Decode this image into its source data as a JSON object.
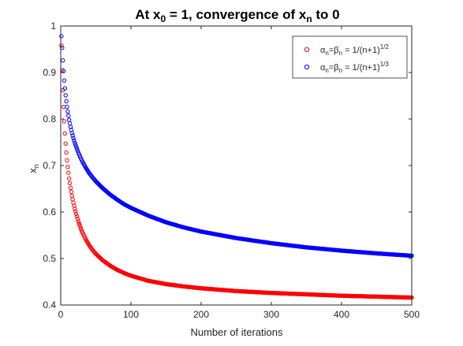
{
  "chart_data": {
    "type": "scatter",
    "title": {
      "a": "At x",
      "a_sub": "0",
      "b": " = 1, convergence of x",
      "b_sub": "n",
      "c": " to 0"
    },
    "xlabel": "Number of iterations",
    "ylabel": {
      "base": "x",
      "sub": "n"
    },
    "xlim": [
      0,
      500
    ],
    "ylim": [
      0.4,
      1.0
    ],
    "xticks": [
      0,
      100,
      200,
      300,
      400,
      500
    ],
    "xtick_labels": [
      "0",
      "100",
      "200",
      "300",
      "400",
      "500"
    ],
    "yticks": [
      0.4,
      0.5,
      0.6,
      0.7,
      0.8,
      0.9,
      1.0
    ],
    "ytick_labels": [
      "0.4",
      "0.5",
      "0.6",
      "0.7",
      "0.8",
      "0.9",
      "1"
    ],
    "grid": false,
    "legend_position": "top-right",
    "marker": "open-circle",
    "series": [
      {
        "name": "αn=βn = 1/(n+1)^(1/2)",
        "color": "#ff0000",
        "legend": {
          "a1": "α",
          "s1": "n",
          "a2": "=β",
          "s2": "n",
          "a3": " = 1/(n+1)",
          "sup": "1/2"
        },
        "points": [
          [
            1,
            0.958
          ],
          [
            2,
            0.905
          ],
          [
            3,
            0.862
          ],
          [
            4,
            0.826
          ],
          [
            5,
            0.795
          ],
          [
            6,
            0.769
          ],
          [
            7,
            0.747
          ],
          [
            8,
            0.728
          ],
          [
            9,
            0.711
          ],
          [
            10,
            0.697
          ],
          [
            12,
            0.672
          ],
          [
            14,
            0.652
          ],
          [
            16,
            0.635
          ],
          [
            18,
            0.62
          ],
          [
            20,
            0.607
          ],
          [
            25,
            0.58
          ],
          [
            30,
            0.559
          ],
          [
            35,
            0.543
          ],
          [
            40,
            0.53
          ],
          [
            45,
            0.519
          ],
          [
            50,
            0.51
          ],
          [
            60,
            0.496
          ],
          [
            70,
            0.485
          ],
          [
            80,
            0.476
          ],
          [
            90,
            0.469
          ],
          [
            100,
            0.463
          ],
          [
            125,
            0.452
          ],
          [
            150,
            0.445
          ],
          [
            175,
            0.44
          ],
          [
            200,
            0.436
          ],
          [
            250,
            0.43
          ],
          [
            300,
            0.426
          ],
          [
            350,
            0.423
          ],
          [
            400,
            0.42
          ],
          [
            450,
            0.418
          ],
          [
            500,
            0.416
          ]
        ]
      },
      {
        "name": "αn=βn = 1/(n+1)^(1/3)",
        "color": "#0000ff",
        "legend": {
          "a1": "α",
          "s1": "n",
          "a2": "=β",
          "s2": "n",
          "a3": " = 1/(n+1)",
          "sup": "1/3"
        },
        "points": [
          [
            1,
            0.978
          ],
          [
            2,
            0.953
          ],
          [
            3,
            0.926
          ],
          [
            4,
            0.903
          ],
          [
            5,
            0.883
          ],
          [
            6,
            0.866
          ],
          [
            7,
            0.851
          ],
          [
            8,
            0.838
          ],
          [
            9,
            0.826
          ],
          [
            10,
            0.816
          ],
          [
            12,
            0.798
          ],
          [
            14,
            0.783
          ],
          [
            16,
            0.77
          ],
          [
            18,
            0.759
          ],
          [
            20,
            0.749
          ],
          [
            25,
            0.728
          ],
          [
            30,
            0.711
          ],
          [
            35,
            0.697
          ],
          [
            40,
            0.685
          ],
          [
            45,
            0.675
          ],
          [
            50,
            0.666
          ],
          [
            60,
            0.651
          ],
          [
            70,
            0.638
          ],
          [
            80,
            0.627
          ],
          [
            90,
            0.617
          ],
          [
            100,
            0.609
          ],
          [
            125,
            0.592
          ],
          [
            150,
            0.578
          ],
          [
            175,
            0.567
          ],
          [
            200,
            0.558
          ],
          [
            250,
            0.544
          ],
          [
            300,
            0.533
          ],
          [
            350,
            0.524
          ],
          [
            400,
            0.517
          ],
          [
            450,
            0.511
          ],
          [
            500,
            0.506
          ]
        ]
      }
    ]
  }
}
